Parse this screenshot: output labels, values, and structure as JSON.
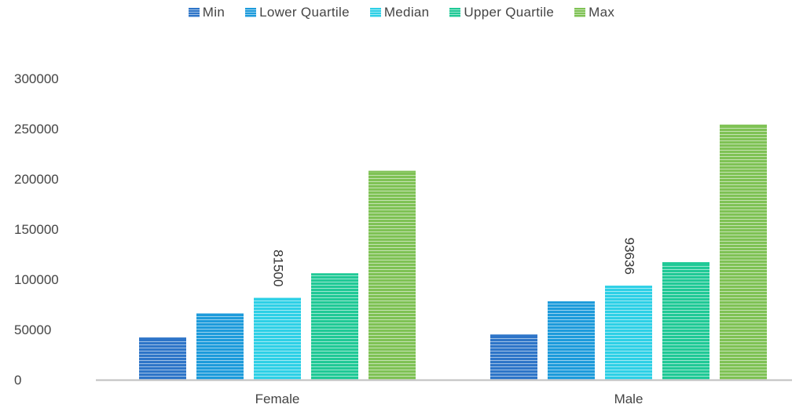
{
  "chart_data": {
    "type": "bar",
    "categories": [
      "Female",
      "Male"
    ],
    "series": [
      {
        "name": "Min",
        "color": "#2e75c8",
        "values": [
          42000,
          45000
        ]
      },
      {
        "name": "Lower Quartile",
        "color": "#1d9bdb",
        "values": [
          66000,
          78000
        ]
      },
      {
        "name": "Median",
        "color": "#2ed0e6",
        "values": [
          81500,
          93636
        ]
      },
      {
        "name": "Upper Quartile",
        "color": "#20c996",
        "values": [
          106000,
          117000
        ]
      },
      {
        "name": "Max",
        "color": "#7fc255",
        "values": [
          208000,
          254000
        ]
      }
    ],
    "data_labels": [
      {
        "series": "Median",
        "category": "Female",
        "text": "81500"
      },
      {
        "series": "Median",
        "category": "Male",
        "text": "93636"
      }
    ],
    "yticks": [
      0,
      50000,
      100000,
      150000,
      200000,
      250000,
      300000
    ],
    "ylim": [
      0,
      300000
    ],
    "legend": "top",
    "grid": false,
    "title": "",
    "xlabel": "",
    "ylabel": ""
  }
}
